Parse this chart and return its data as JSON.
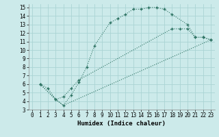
{
  "xlabel": "Humidex (Indice chaleur)",
  "bg_color": "#cceaea",
  "grid_color": "#aad4d4",
  "line_color": "#2a7060",
  "xlim": [
    -0.5,
    23.5
  ],
  "ylim": [
    3,
    15.4
  ],
  "xticks": [
    0,
    1,
    2,
    3,
    4,
    5,
    6,
    7,
    8,
    9,
    10,
    11,
    12,
    13,
    14,
    15,
    16,
    17,
    18,
    19,
    20,
    21,
    22,
    23
  ],
  "yticks": [
    3,
    4,
    5,
    6,
    7,
    8,
    9,
    10,
    11,
    12,
    13,
    14,
    15
  ],
  "curve1_x": [
    1,
    2,
    3,
    4,
    5,
    6,
    7,
    8,
    10,
    11,
    12,
    13,
    14,
    15,
    16,
    17,
    18,
    20,
    21,
    22,
    23
  ],
  "curve1_y": [
    6.0,
    5.5,
    4.2,
    3.5,
    4.7,
    6.2,
    8.0,
    10.5,
    13.2,
    13.7,
    14.2,
    14.8,
    14.8,
    15.0,
    15.0,
    14.8,
    14.2,
    13.0,
    11.5,
    11.5,
    11.2
  ],
  "curve2_x": [
    1,
    3,
    4,
    5,
    6,
    18,
    19,
    20,
    21,
    22,
    23
  ],
  "curve2_y": [
    6.0,
    4.2,
    4.5,
    5.5,
    6.5,
    12.5,
    12.5,
    12.5,
    11.5,
    11.5,
    11.2
  ],
  "curve3_x": [
    1,
    3,
    4,
    23
  ],
  "curve3_y": [
    6.0,
    4.2,
    3.5,
    11.2
  ]
}
